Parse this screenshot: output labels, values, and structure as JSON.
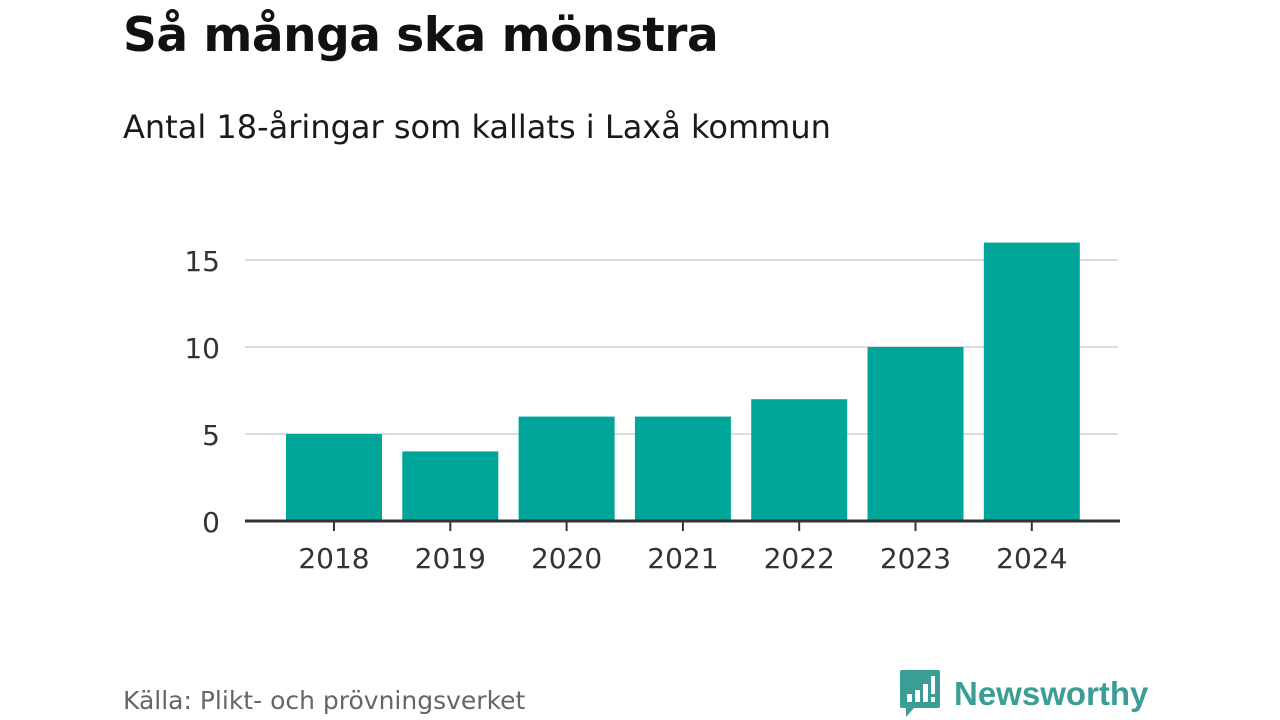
{
  "chart_data": {
    "type": "bar",
    "title": "Så många ska mönstra",
    "subtitle": "Antal 18-åringar som kallats i Laxå kommun",
    "xlabel": "",
    "ylabel": "",
    "categories": [
      "2018",
      "2019",
      "2020",
      "2021",
      "2022",
      "2023",
      "2024"
    ],
    "values": [
      5,
      4,
      6,
      6,
      7,
      10,
      16
    ],
    "ylim": [
      0,
      16
    ],
    "yticks": [
      0,
      5,
      10,
      15
    ],
    "grid": true,
    "bar_color": "#00a59a"
  },
  "source": "Källa: Plikt- och prövningsverket",
  "logo": {
    "text": "Newsworthy",
    "color": "#3a9e94"
  }
}
